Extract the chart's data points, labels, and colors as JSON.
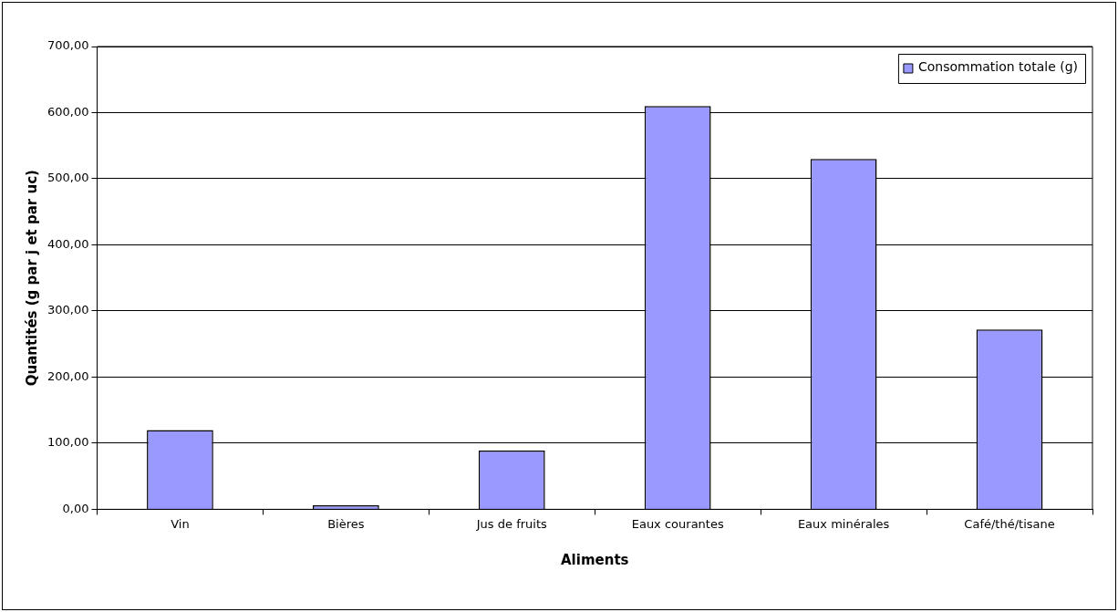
{
  "chart_data": {
    "type": "bar",
    "xlabel": "Aliments",
    "ylabel": "Quantités (g par j et par uc)",
    "categories": [
      "Vin",
      "Bières",
      "Jus de fruits",
      "Eaux courantes",
      "Eaux minérales",
      "Café/thé/tisane"
    ],
    "series": [
      {
        "name": "Consommation totale (g)",
        "color": "#9999ff",
        "values": [
          120,
          6,
          89,
          610,
          530,
          272
        ]
      }
    ],
    "ylim": [
      0,
      700
    ],
    "yticks": [
      {
        "value": 0,
        "label": "0,00"
      },
      {
        "value": 100,
        "label": "100,00"
      },
      {
        "value": 200,
        "label": "200,00"
      },
      {
        "value": 300,
        "label": "300,00"
      },
      {
        "value": 400,
        "label": "400,00"
      },
      {
        "value": 500,
        "label": "500,00"
      },
      {
        "value": 600,
        "label": "600,00"
      },
      {
        "value": 700,
        "label": "700,00"
      }
    ],
    "grid": "y",
    "legend": "top right"
  }
}
